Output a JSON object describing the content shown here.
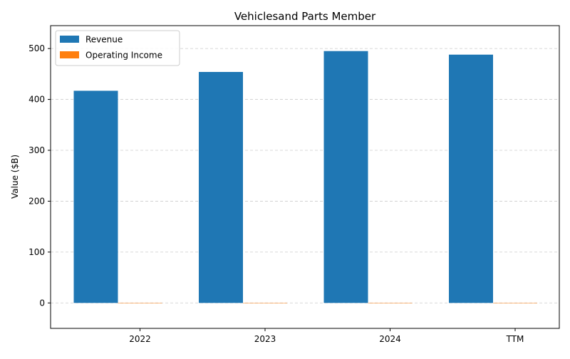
{
  "chart_data": {
    "type": "bar",
    "title": "Vehiclesand Parts Member",
    "xlabel": "",
    "ylabel": "Value ($B)",
    "categories": [
      "2022",
      "2023",
      "2024",
      "TTM"
    ],
    "series": [
      {
        "name": "Revenue",
        "values": [
          417,
          454,
          495,
          488
        ],
        "color": "#1f77b4"
      },
      {
        "name": "Operating Income",
        "values": [
          0,
          0,
          0,
          0
        ],
        "color": "#ff7f0e"
      }
    ],
    "ylim": [
      -50,
      545
    ],
    "yticks": [
      0,
      100,
      200,
      300,
      400,
      500
    ],
    "grid": "y-dashed",
    "legend_position": "top-left"
  }
}
